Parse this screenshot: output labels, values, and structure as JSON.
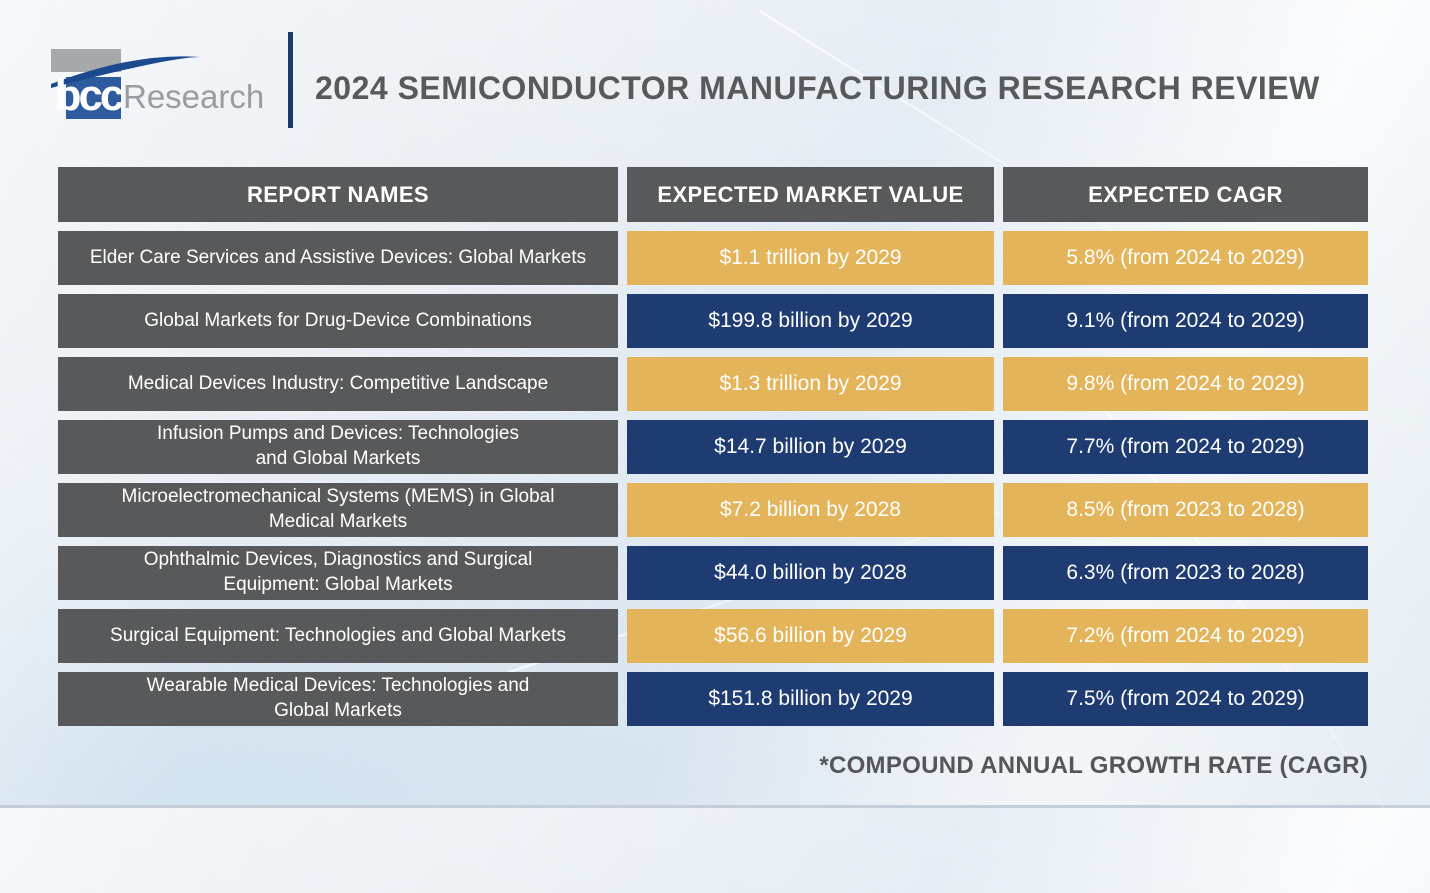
{
  "header": {
    "logo": {
      "bcc": "bcc",
      "research": "Research"
    },
    "title": "2024 SEMICONDUCTOR MANUFACTURING RESEARCH REVIEW"
  },
  "chart_data": {
    "type": "table",
    "title": "2024 SEMICONDUCTOR MANUFACTURING RESEARCH REVIEW",
    "columns": [
      "REPORT NAMES",
      "EXPECTED MARKET VALUE",
      "EXPECTED CAGR"
    ],
    "rows": [
      {
        "report": "Elder Care Services and Assistive Devices: Global Markets",
        "value": "$1.1 trillion by 2029",
        "cagr": "5.8% (from 2024 to 2029)",
        "theme": "gold"
      },
      {
        "report": "Global Markets for Drug-Device Combinations",
        "value": "$199.8 billion by 2029",
        "cagr": "9.1% (from 2024 to 2029)",
        "theme": "navy"
      },
      {
        "report": "Medical Devices Industry: Competitive Landscape",
        "value": "$1.3 trillion by 2029",
        "cagr": "9.8% (from 2024 to 2029)",
        "theme": "gold"
      },
      {
        "report": "Infusion Pumps and Devices: Technologies\nand Global Markets",
        "value": "$14.7 billion by 2029",
        "cagr": "7.7% (from 2024 to 2029)",
        "theme": "navy"
      },
      {
        "report": "Microelectromechanical Systems (MEMS) in Global\nMedical Markets",
        "value": "$7.2 billion by 2028",
        "cagr": "8.5% (from 2023 to 2028)",
        "theme": "gold"
      },
      {
        "report": "Ophthalmic Devices, Diagnostics and Surgical\nEquipment: Global Markets",
        "value": "$44.0 billion by 2028",
        "cagr": "6.3% (from 2023 to 2028)",
        "theme": "navy"
      },
      {
        "report": "Surgical Equipment: Technologies and Global Markets",
        "value": "$56.6 billion by 2029",
        "cagr": "7.2% (from 2024 to 2029)",
        "theme": "gold"
      },
      {
        "report": "Wearable Medical Devices: Technologies and\nGlobal Markets",
        "value": "$151.8 billion by 2029",
        "cagr": "7.5% (from 2024 to 2029)",
        "theme": "navy"
      }
    ],
    "footnote": "*COMPOUND ANNUAL GROWTH RATE (CAGR)"
  },
  "colors": {
    "gold": "#E3B45A",
    "navy": "#1E3C72",
    "gray": "#58595B",
    "logo_blue": "#2D5B9E",
    "divider_navy": "#1E3A6B",
    "title_gray": "#58595B"
  }
}
